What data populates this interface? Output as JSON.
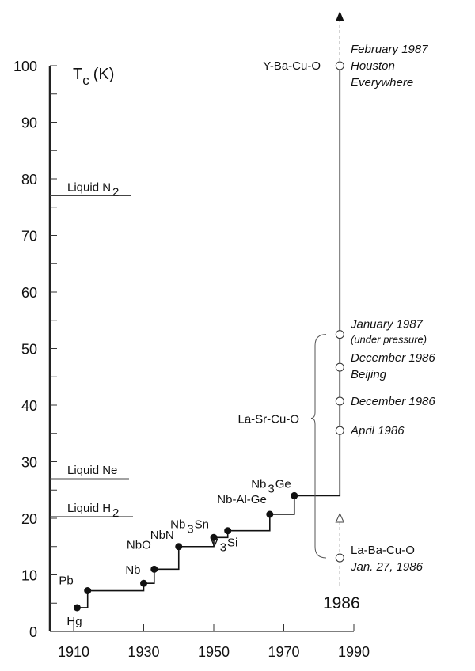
{
  "chart_data": {
    "type": "line",
    "ylabel": "T",
    "ylabel_sub": "c",
    "ylabel_unit": "(K)",
    "xlim": [
      1906,
      1990
    ],
    "ylim": [
      0,
      100
    ],
    "xticks": [
      1910,
      1930,
      1950,
      1970,
      1990
    ],
    "xtick_labels": [
      "1910",
      "1930",
      "1950",
      "1970",
      "1990"
    ],
    "yticks": [
      0,
      10,
      20,
      30,
      40,
      50,
      60,
      70,
      80,
      90,
      100
    ],
    "ytick_labels": [
      "0",
      "10",
      "20",
      "30",
      "40",
      "50",
      "60",
      "70",
      "80",
      "90",
      "100"
    ],
    "grid": false,
    "series": [
      {
        "style": "step, filled markers",
        "points": [
          {
            "x": 1911,
            "y": 4.2,
            "label": "Hg"
          },
          {
            "x": 1914,
            "y": 7.2,
            "label": "Pb"
          },
          {
            "x": 1930,
            "y": 8.5,
            "label": "Nb"
          },
          {
            "x": 1933,
            "y": 11,
            "label": "NbO"
          },
          {
            "x": 1940,
            "y": 15,
            "label": "NbN"
          },
          {
            "x": 1950,
            "y": 16.6,
            "label": "Nb3Sn",
            "label_parts": [
              "Nb",
              "3",
              "Sn"
            ]
          },
          {
            "x": 1954,
            "y": 17.8,
            "label": "V3Si",
            "label_parts": [
              "V",
              "3",
              "Si"
            ]
          },
          {
            "x": 1966,
            "y": 20.7,
            "label": "Nb-Al-Ge"
          },
          {
            "x": 1973,
            "y": 24,
            "label": "Nb3Ge",
            "label_parts": [
              "Nb",
              "3",
              "Ge"
            ]
          }
        ]
      },
      {
        "style": "open markers at 1986",
        "points": [
          {
            "x": 1986,
            "y": 13,
            "label_lines": [
              "La-Ba-Cu-O",
              "Jan. 27, 1986"
            ]
          },
          {
            "x": 1986,
            "y": 35.5,
            "label_lines": [
              "April 1986"
            ]
          },
          {
            "x": 1986,
            "y": 40.7,
            "label_lines": [
              "December 1986"
            ]
          },
          {
            "x": 1986,
            "y": 46.7,
            "label_lines": [
              "December 1986",
              "Beijing"
            ]
          },
          {
            "x": 1986,
            "y": 52.5,
            "label_lines": [
              "January 1987",
              "(under pressure)"
            ]
          },
          {
            "x": 1986,
            "y": 100,
            "label_lines": [
              "February 1987",
              "Houston",
              "Everywhere"
            ]
          }
        ]
      }
    ],
    "reference_lines": [
      {
        "y": 77,
        "label": "Liquid  N",
        "sub": "2"
      },
      {
        "y": 27,
        "label": "Liquid  Ne"
      },
      {
        "y": 20.3,
        "label": "Liquid  H",
        "sub": "2"
      }
    ],
    "annotations": {
      "la_sr_cu_o": "La-Sr-Cu-O",
      "y_ba_cu_o": "Y-Ba-Cu-O",
      "year_1986": "1986"
    }
  }
}
